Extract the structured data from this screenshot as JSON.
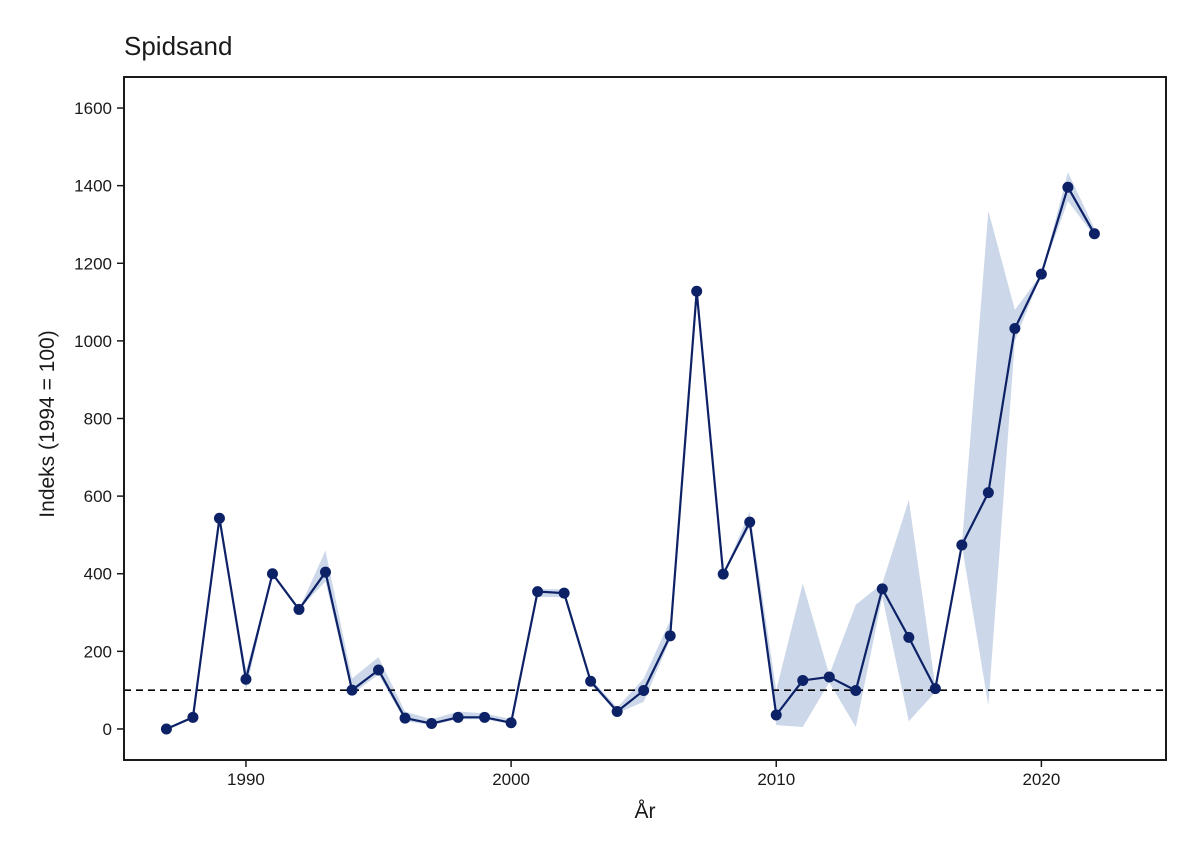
{
  "chart_data": {
    "type": "line",
    "title": "Spidsand",
    "xlabel": "År",
    "ylabel": "Indeks (1994 = 100)",
    "xlim": [
      1985.4,
      2024.7
    ],
    "ylim": [
      -80,
      1680
    ],
    "x_ticks": [
      1990,
      2000,
      2010,
      2020
    ],
    "y_ticks": [
      0,
      200,
      400,
      600,
      800,
      1000,
      1200,
      1400,
      1600
    ],
    "reference_line": {
      "y": 100,
      "style": "dashed",
      "color": "#000000"
    },
    "grid": false,
    "legend": "none",
    "series": [
      {
        "line_color": "#0d2166",
        "band_color": "#ccd8e9",
        "x": [
          1987,
          1988,
          1989,
          1990,
          1991,
          1992,
          1993,
          1994,
          1995,
          1996,
          1997,
          1998,
          1999,
          2000,
          2001,
          2002,
          2003,
          2004,
          2005,
          2006,
          2007,
          2008,
          2009,
          2010,
          2011,
          2012,
          2013,
          2014,
          2015,
          2016,
          2017,
          2018,
          2019,
          2020,
          2021,
          2022
        ],
        "y": [
          0,
          30,
          543,
          128,
          400,
          308,
          404,
          100,
          152,
          28,
          14,
          30,
          30,
          16,
          354,
          350,
          123,
          45,
          99,
          240,
          1128,
          399,
          533,
          36,
          125,
          134,
          99,
          361,
          236,
          104,
          474,
          609,
          1032,
          1172,
          1396,
          1276
        ],
        "lower": [
          0,
          30,
          543,
          100,
          400,
          308,
          380,
          90,
          140,
          20,
          10,
          25,
          25,
          12,
          340,
          340,
          115,
          40,
          70,
          230,
          1128,
          399,
          520,
          10,
          5,
          120,
          5,
          340,
          20,
          95,
          474,
          60,
          1000,
          1172,
          1360,
          1270
        ],
        "upper": [
          0,
          30,
          543,
          150,
          400,
          308,
          460,
          130,
          185,
          45,
          25,
          45,
          40,
          25,
          360,
          360,
          130,
          55,
          130,
          280,
          1128,
          399,
          560,
          100,
          375,
          140,
          320,
          375,
          590,
          110,
          474,
          1335,
          1080,
          1172,
          1435,
          1290
        ]
      }
    ]
  }
}
